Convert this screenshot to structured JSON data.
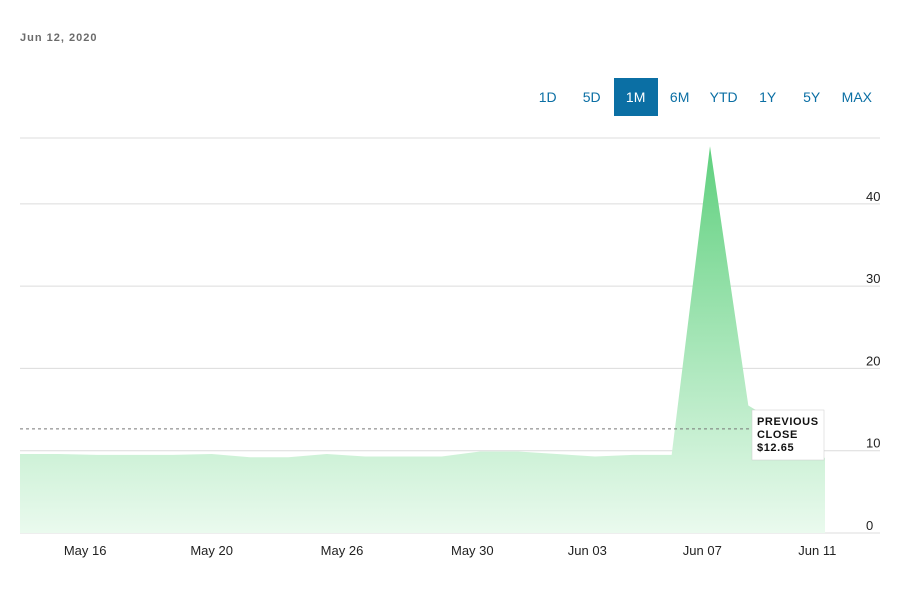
{
  "header": {
    "date": "Jun 12, 2020"
  },
  "range_buttons": [
    {
      "label": "1D",
      "active": false
    },
    {
      "label": "5D",
      "active": false
    },
    {
      "label": "1M",
      "active": true
    },
    {
      "label": "6M",
      "active": false
    },
    {
      "label": "YTD",
      "active": false
    },
    {
      "label": "1Y",
      "active": false
    },
    {
      "label": "5Y",
      "active": false
    },
    {
      "label": "MAX",
      "active": false
    }
  ],
  "colors": {
    "accent": "#0b6fa4",
    "area_top": "#5fd07e",
    "area_bottom": "#eafaee",
    "grid": "#dcdcdc"
  },
  "chart_data": {
    "type": "area",
    "ylim": [
      0,
      48
    ],
    "yticks": [
      0,
      10,
      20,
      30,
      40
    ],
    "x": [
      "May 13",
      "May 14",
      "May 15",
      "May 18",
      "May 19",
      "May 20",
      "May 21",
      "May 22",
      "May 26",
      "May 27",
      "May 28",
      "May 29",
      "Jun 01",
      "Jun 02",
      "Jun 03",
      "Jun 04",
      "Jun 05",
      "Jun 08",
      "Jun 09",
      "Jun 10",
      "Jun 11",
      "Jun 12"
    ],
    "values": [
      9.6,
      9.6,
      9.5,
      9.5,
      9.5,
      9.6,
      9.2,
      9.2,
      9.6,
      9.3,
      9.3,
      9.3,
      9.9,
      9.9,
      9.6,
      9.3,
      9.5,
      9.5,
      47.0,
      15.5,
      12.65,
      9.1
    ],
    "x_tick_labels": [
      "May 16",
      "May 20",
      "May 26",
      "May 30",
      "Jun 03",
      "Jun 07",
      "Jun 11"
    ],
    "x_tick_positions": [
      1.7,
      5,
      8.4,
      11.8,
      14.8,
      17.8,
      20.8
    ],
    "reference_line": {
      "value": 12.65,
      "label_lines": [
        "PREVIOUS",
        "CLOSE",
        "$12.65"
      ]
    }
  }
}
